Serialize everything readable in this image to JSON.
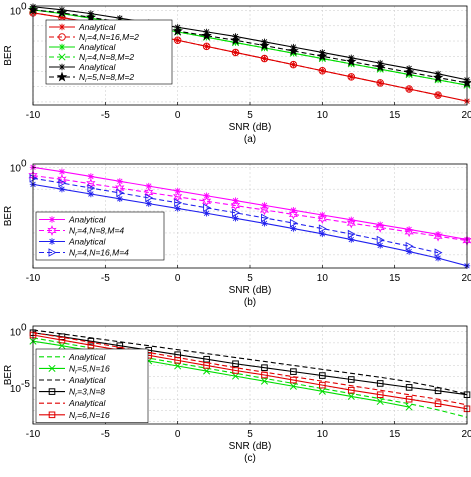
{
  "chart_data": [
    {
      "type": "line",
      "panel_label": "(a)",
      "xlabel": "SNR (dB)",
      "ylabel": "BER",
      "xlim": [
        -10,
        20
      ],
      "yscale": "log",
      "ylim_log10": [
        -6.2,
        0.3
      ],
      "x_ticks": [
        -10,
        -5,
        0,
        5,
        10,
        15,
        20
      ],
      "y_ticks": [
        {
          "value_log10": 0,
          "label": "10",
          "exp": "0"
        }
      ],
      "grid": true,
      "legend_position": "left",
      "series": [
        {
          "name": "Analytical",
          "color": "#e00000",
          "dash": "",
          "marker": "asterisk",
          "x": [
            -10,
            -8,
            -6,
            -4,
            -2,
            0,
            2,
            4,
            6,
            8,
            10,
            12,
            14,
            16,
            18,
            20
          ],
          "y_log10": [
            -0.15,
            -0.45,
            -0.8,
            -1.15,
            -1.55,
            -1.95,
            -2.35,
            -2.75,
            -3.15,
            -3.55,
            -3.95,
            -4.35,
            -4.75,
            -5.15,
            -5.55,
            -5.95
          ]
        },
        {
          "name": "N_r=4,N=16,M=2",
          "color": "#e00000",
          "dash": "5 3",
          "marker": "circle",
          "x": [
            -10,
            -8,
            -6,
            -4,
            -2,
            0,
            2,
            4,
            6,
            8,
            10,
            12,
            14,
            16,
            18
          ],
          "y_log10": [
            -0.15,
            -0.45,
            -0.8,
            -1.15,
            -1.55,
            -1.95,
            -2.35,
            -2.75,
            -3.15,
            -3.55,
            -3.95,
            -4.35,
            -4.75,
            -5.15,
            -5.55
          ]
        },
        {
          "name": "Analytical",
          "color": "#00dd00",
          "dash": "",
          "marker": "asterisk",
          "x": [
            -10,
            -8,
            -6,
            -4,
            -2,
            0,
            2,
            4,
            6,
            8,
            10,
            12,
            14,
            16,
            18,
            20
          ],
          "y_log10": [
            0.05,
            -0.2,
            -0.5,
            -0.8,
            -1.1,
            -1.4,
            -1.75,
            -2.1,
            -2.45,
            -2.8,
            -3.15,
            -3.5,
            -3.85,
            -4.2,
            -4.55,
            -4.9
          ]
        },
        {
          "name": "N_r=4,N=8,M=2",
          "color": "#00dd00",
          "dash": "5 3",
          "marker": "x",
          "x": [
            -10,
            -8,
            -6,
            -4,
            -2,
            0,
            2,
            4,
            6,
            8,
            10,
            12,
            14,
            16,
            18,
            20
          ],
          "y_log10": [
            0.05,
            -0.2,
            -0.5,
            -0.8,
            -1.1,
            -1.4,
            -1.75,
            -2.1,
            -2.45,
            -2.8,
            -3.15,
            -3.5,
            -3.85,
            -4.2,
            -4.55,
            -4.9
          ]
        },
        {
          "name": "Analytical",
          "color": "#000000",
          "dash": "",
          "marker": "asterisk",
          "x": [
            -10,
            -8,
            -6,
            -4,
            -2,
            0,
            2,
            4,
            6,
            8,
            10,
            12,
            14,
            16,
            18,
            20
          ],
          "y_log10": [
            0.25,
            0.05,
            -0.2,
            -0.5,
            -0.8,
            -1.1,
            -1.4,
            -1.7,
            -2.05,
            -2.4,
            -2.75,
            -3.1,
            -3.45,
            -3.8,
            -4.15,
            -4.55
          ]
        },
        {
          "name": "N_r=5,N=8,M=2",
          "color": "#000000",
          "dash": "5 3",
          "marker": "star",
          "x": [
            -10,
            -8,
            -6,
            -4,
            -2,
            0,
            2,
            4,
            6,
            8,
            10,
            12,
            14,
            16,
            18,
            20
          ],
          "y_log10": [
            0.05,
            -0.15,
            -0.45,
            -0.75,
            -1.05,
            -1.35,
            -1.65,
            -1.95,
            -2.3,
            -2.65,
            -3.0,
            -3.35,
            -3.7,
            -4.05,
            -4.4,
            -4.75
          ]
        }
      ]
    },
    {
      "type": "line",
      "panel_label": "(b)",
      "xlabel": "SNR (dB)",
      "ylabel": "BER",
      "xlim": [
        -10,
        20
      ],
      "yscale": "log",
      "ylim_log10": [
        -4.6,
        0.15
      ],
      "x_ticks": [
        -10,
        -5,
        0,
        5,
        10,
        15,
        20
      ],
      "y_ticks": [
        {
          "value_log10": 0,
          "label": "10",
          "exp": "0"
        }
      ],
      "grid": true,
      "legend_position": "left",
      "series": [
        {
          "name": "Analytical",
          "color": "#ff00ff",
          "dash": "",
          "marker": "asterisk",
          "x": [
            -10,
            -8,
            -6,
            -4,
            -2,
            0,
            2,
            4,
            6,
            8,
            10,
            12,
            14,
            16,
            18,
            20
          ],
          "y_log10": [
            0.0,
            -0.2,
            -0.42,
            -0.64,
            -0.86,
            -1.08,
            -1.3,
            -1.52,
            -1.74,
            -1.96,
            -2.18,
            -2.4,
            -2.62,
            -2.84,
            -3.06,
            -3.3
          ]
        },
        {
          "name": "N_r=4,N=8,M=4",
          "color": "#ff00ff",
          "dash": "5 3",
          "marker": "star6",
          "x": [
            -10,
            -8,
            -6,
            -4,
            -2,
            0,
            2,
            4,
            6,
            8,
            10,
            12,
            14,
            16,
            18,
            20
          ],
          "y_log10": [
            -0.38,
            -0.55,
            -0.75,
            -0.95,
            -1.15,
            -1.35,
            -1.55,
            -1.75,
            -1.95,
            -2.15,
            -2.35,
            -2.55,
            -2.75,
            -2.95,
            -3.15,
            -3.35
          ]
        },
        {
          "name": "Analytical",
          "color": "#2020ee",
          "dash": "",
          "marker": "asterisk",
          "x": [
            -10,
            -8,
            -6,
            -4,
            -2,
            0,
            2,
            4,
            6,
            8,
            10,
            12,
            14,
            16,
            18,
            20
          ],
          "y_log10": [
            -0.78,
            -1.0,
            -1.22,
            -1.44,
            -1.66,
            -1.88,
            -2.1,
            -2.33,
            -2.56,
            -2.8,
            -3.04,
            -3.3,
            -3.57,
            -3.85,
            -4.15,
            -4.5
          ]
        },
        {
          "name": "N_r=4,N=16,M=4",
          "color": "#2020ee",
          "dash": "5 3",
          "marker": "triangle-right",
          "x": [
            -10,
            -8,
            -6,
            -4,
            -2,
            0,
            2,
            4,
            6,
            8,
            10,
            12,
            14,
            16,
            18
          ],
          "y_log10": [
            -0.5,
            -0.72,
            -0.95,
            -1.17,
            -1.4,
            -1.62,
            -1.85,
            -2.08,
            -2.31,
            -2.55,
            -2.8,
            -3.05,
            -3.32,
            -3.6,
            -3.9
          ]
        }
      ]
    },
    {
      "type": "line",
      "panel_label": "(c)",
      "xlabel": "SNR (dB)",
      "ylabel": "BER",
      "xlim": [
        -10,
        20
      ],
      "yscale": "log",
      "ylim_log10": [
        -8.2,
        0.5
      ],
      "x_ticks": [
        -10,
        -5,
        0,
        5,
        10,
        15,
        20
      ],
      "y_ticks": [
        {
          "value_log10": 0,
          "label": "10",
          "exp": "0"
        },
        {
          "value_log10": -5,
          "label": "10",
          "exp": "-5"
        }
      ],
      "grid": true,
      "legend_position": "left",
      "series": [
        {
          "name": "Analytical",
          "color": "#00dd00",
          "dash": "5 3",
          "marker": "none",
          "x": [
            -10,
            -8,
            -6,
            -4,
            -2,
            0,
            2,
            4,
            6,
            8,
            10,
            12,
            14,
            16,
            18,
            20
          ],
          "y_log10": [
            -0.55,
            -1.0,
            -1.45,
            -1.9,
            -2.35,
            -2.8,
            -3.25,
            -3.7,
            -4.15,
            -4.6,
            -5.05,
            -5.5,
            -5.95,
            -6.4,
            -6.95,
            -7.6
          ]
        },
        {
          "name": "N_r=5,N=16",
          "color": "#00dd00",
          "dash": "",
          "marker": "x",
          "x": [
            -10,
            -8,
            -6,
            -4,
            -2,
            0,
            2,
            4,
            6,
            8,
            10,
            12,
            14,
            16
          ],
          "y_log10": [
            -0.85,
            -1.25,
            -1.7,
            -2.15,
            -2.6,
            -3.05,
            -3.5,
            -3.95,
            -4.4,
            -4.85,
            -5.3,
            -5.75,
            -6.2,
            -6.7
          ]
        },
        {
          "name": "Analytical",
          "color": "#000000",
          "dash": "5 3",
          "marker": "none",
          "x": [
            -10,
            -8,
            -6,
            -4,
            -2,
            0,
            2,
            4,
            6,
            8,
            10,
            12,
            14,
            16,
            18,
            20
          ],
          "y_log10": [
            0.15,
            -0.2,
            -0.55,
            -0.9,
            -1.25,
            -1.6,
            -1.95,
            -2.3,
            -2.65,
            -3.0,
            -3.35,
            -3.7,
            -4.05,
            -4.45,
            -4.95,
            -5.55
          ]
        },
        {
          "name": "N_r=3,N=8",
          "color": "#000000",
          "dash": "",
          "marker": "square",
          "x": [
            -10,
            -8,
            -6,
            -4,
            -2,
            0,
            2,
            4,
            6,
            8,
            10,
            12,
            14,
            16,
            18,
            20
          ],
          "y_log10": [
            -0.1,
            -0.45,
            -0.85,
            -1.25,
            -1.65,
            -2.05,
            -2.45,
            -2.85,
            -3.2,
            -3.55,
            -3.9,
            -4.25,
            -4.6,
            -4.95,
            -5.25,
            -5.6
          ]
        },
        {
          "name": "Analytical",
          "color": "#e00000",
          "dash": "5 3",
          "marker": "none",
          "x": [
            -10,
            -8,
            -6,
            -4,
            -2,
            0,
            2,
            4,
            6,
            8,
            10,
            12,
            14,
            16,
            18,
            20
          ],
          "y_log10": [
            -0.1,
            -0.5,
            -0.95,
            -1.4,
            -1.85,
            -2.3,
            -2.75,
            -3.2,
            -3.6,
            -4.0,
            -4.4,
            -4.8,
            -5.2,
            -5.6,
            -6.0,
            -6.5
          ]
        },
        {
          "name": "N_r=6,N=16",
          "color": "#e00000",
          "dash": "",
          "marker": "square",
          "x": [
            -10,
            -8,
            -6,
            -4,
            -2,
            0,
            2,
            4,
            6,
            8,
            10,
            12,
            14,
            16,
            18,
            20
          ],
          "y_log10": [
            -0.3,
            -0.75,
            -1.2,
            -1.65,
            -2.1,
            -2.55,
            -3.0,
            -3.45,
            -3.85,
            -4.3,
            -4.75,
            -5.2,
            -5.6,
            -6.0,
            -6.4,
            -6.85
          ]
        }
      ]
    }
  ]
}
